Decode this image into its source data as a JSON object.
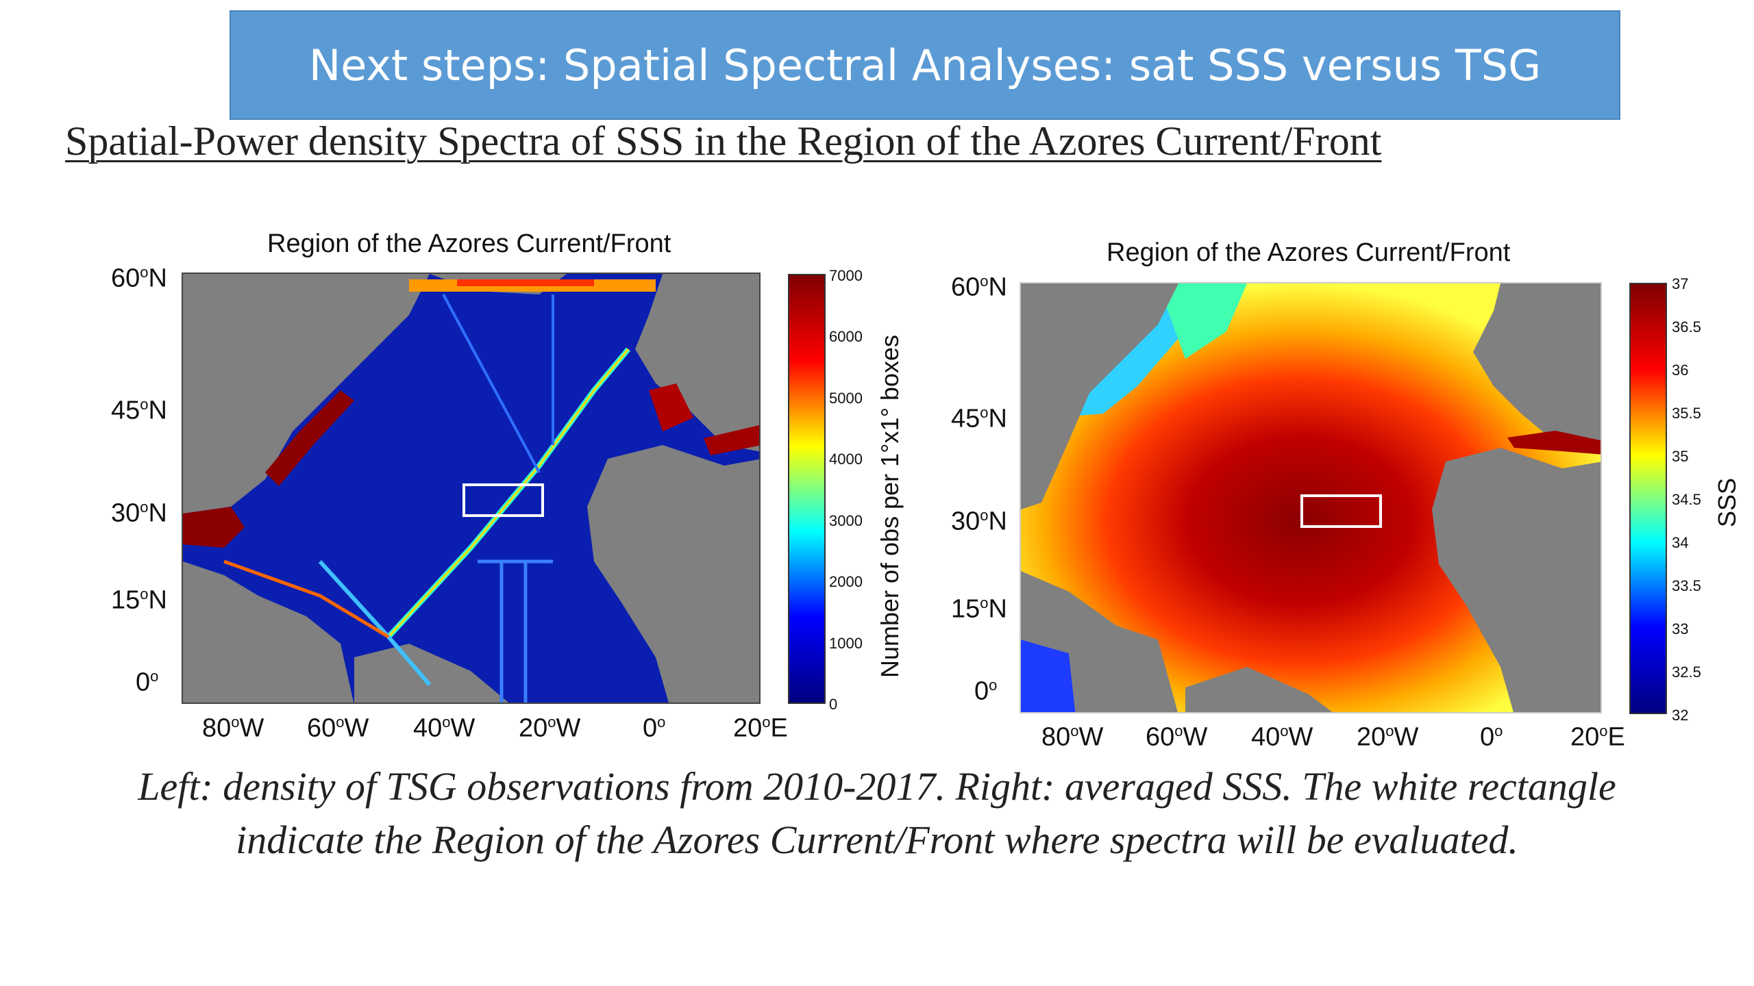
{
  "slide": {
    "banner_title": "Next steps: Spatial Spectral Analyses: sat SSS versus TSG",
    "subtitle": "Spatial-Power density Spectra of SSS in the Region of the Azores Current/Front",
    "caption_line1": "Left: density of TSG observations from 2010-2017. Right: averaged SSS. The white rectangle",
    "caption_line2": "indicate the Region of the Azores Current/Front  where spectra will be evaluated."
  },
  "left_map": {
    "title": "Region of the Azores Current/Front",
    "lat_ticks": [
      "60",
      "45",
      "30",
      "15",
      "0"
    ],
    "lat_suffix": [
      "N",
      "N",
      "N",
      "N",
      ""
    ],
    "lon_ticks": [
      "80",
      "60",
      "40",
      "20",
      "0",
      "20"
    ],
    "lon_suffix": [
      "W",
      "W",
      "W",
      "W",
      "",
      "E"
    ],
    "colorbar_ticks": [
      "7000",
      "6000",
      "5000",
      "4000",
      "3000",
      "2000",
      "1000",
      "0"
    ],
    "colorbar_label": "Number of obs per 1°x1° boxes",
    "colors": {
      "land": "#808080",
      "ocean": "#0a1fb0",
      "high": "#8b0000"
    }
  },
  "right_map": {
    "title": "Region of the Azores Current/Front",
    "lat_ticks": [
      "60",
      "45",
      "30",
      "15",
      "0"
    ],
    "lat_suffix": [
      "N",
      "N",
      "N",
      "N",
      ""
    ],
    "lon_ticks": [
      "80",
      "60",
      "40",
      "20",
      "0",
      "20"
    ],
    "lon_suffix": [
      "W",
      "W",
      "W",
      "W",
      "",
      "E"
    ],
    "colorbar_ticks": [
      "37",
      "36.5",
      "36",
      "35.5",
      "35",
      "34.5",
      "34",
      "33.5",
      "33",
      "32.5",
      "32"
    ],
    "colorbar_label": "SSS",
    "colors": {
      "land": "#808080",
      "salty": "#a00000",
      "fresh": "#1e3cff"
    }
  }
}
